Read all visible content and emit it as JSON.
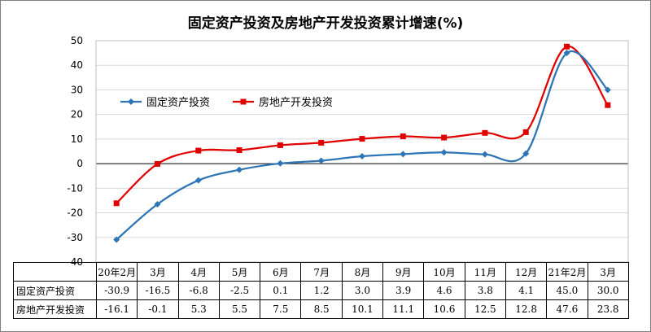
{
  "chart_data": {
    "type": "line",
    "title": "固定资产投资及房地产开发投资累计增速(%)",
    "categories": [
      "20年2月",
      "3月",
      "4月",
      "5月",
      "6月",
      "7月",
      "8月",
      "9月",
      "10月",
      "11月",
      "12月",
      "21年2月",
      "3月"
    ],
    "ylim": [
      -40,
      50
    ],
    "yticks": [
      "50",
      "40",
      "30",
      "20",
      "10",
      "0",
      "-10",
      "-20",
      "-30",
      "-40"
    ],
    "grid": true,
    "legend_position": "left",
    "series": [
      {
        "name": "固定资产投资",
        "color": "#2E75B6",
        "marker": "diamond",
        "values": [
          -30.9,
          -16.5,
          -6.8,
          -2.5,
          0.1,
          1.2,
          3.0,
          3.9,
          4.6,
          3.8,
          4.1,
          45.0,
          30.0
        ],
        "labels": [
          "-30.9",
          "-16.5",
          "-6.8",
          "-2.5",
          "0.1",
          "1.2",
          "3.0",
          "3.9",
          "4.6",
          "3.8",
          "4.1",
          "45.0",
          "30.0"
        ]
      },
      {
        "name": "房地产开发投资",
        "color": "#E00000",
        "marker": "square",
        "values": [
          -16.1,
          -0.1,
          5.3,
          5.5,
          7.5,
          8.5,
          10.1,
          11.1,
          10.6,
          12.5,
          12.8,
          47.6,
          23.8
        ],
        "labels": [
          "-16.1",
          "-0.1",
          "5.3",
          "5.5",
          "7.5",
          "8.5",
          "10.1",
          "11.1",
          "10.6",
          "12.5",
          "12.8",
          "47.6",
          "23.8"
        ]
      }
    ]
  }
}
